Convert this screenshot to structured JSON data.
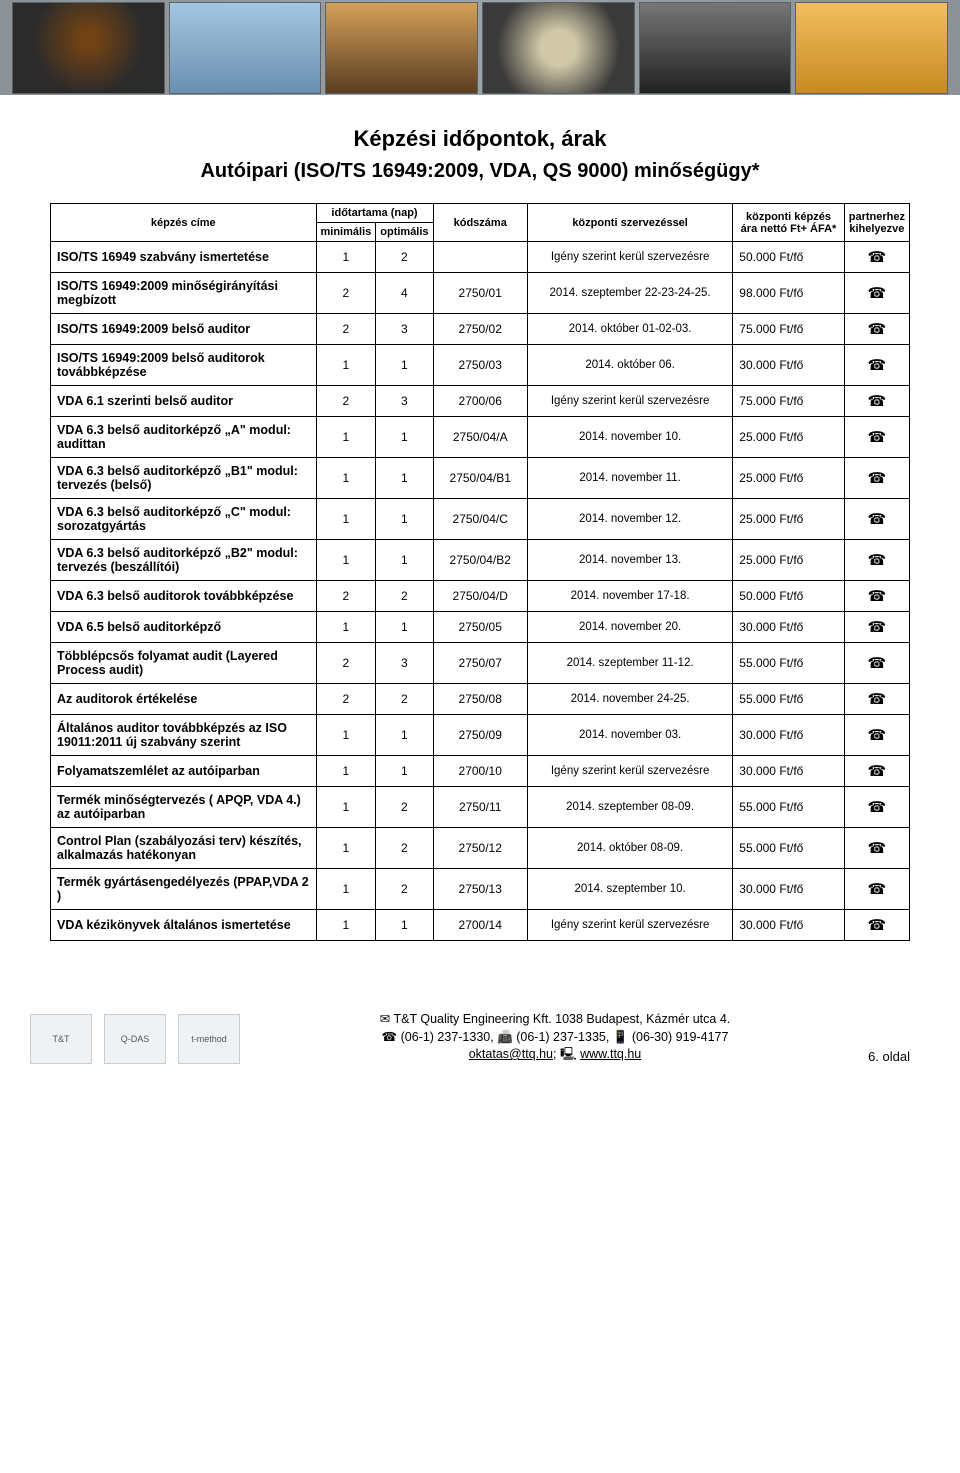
{
  "page_title": "Képzési időpontok, árak",
  "section_title": "Autóipari (ISO/TS 16949:2009, VDA, QS 9000) minőségügy*",
  "columns": {
    "name": "képzés címe",
    "duration_group": "időtartama (nap)",
    "min": "minimális",
    "opt": "optimális",
    "code": "kódszáma",
    "schedule": "központi szervezéssel",
    "price_group": "központi képzés ára nettó Ft+ ÁFA*",
    "partner": "partnerhez kihelyezve"
  },
  "rows": [
    {
      "name": "ISO/TS 16949 szabvány ismertetése",
      "min": "1",
      "opt": "2",
      "code": "",
      "sched": "Igény szerint kerül szervezésre",
      "price": "50.000 Ft/fő"
    },
    {
      "name": "ISO/TS 16949:2009 minőségirányítási megbízott",
      "min": "2",
      "opt": "4",
      "code": "2750/01",
      "sched": "2014. szeptember 22-23-24-25.",
      "price": "98.000 Ft/fő"
    },
    {
      "name": "ISO/TS 16949:2009 belső auditor",
      "min": "2",
      "opt": "3",
      "code": "2750/02",
      "sched": "2014. október 01-02-03.",
      "price": "75.000 Ft/fő"
    },
    {
      "name": "ISO/TS 16949:2009 belső auditorok továbbképzése",
      "min": "1",
      "opt": "1",
      "code": "2750/03",
      "sched": "2014. október 06.",
      "price": "30.000 Ft/fő"
    },
    {
      "name": "VDA 6.1 szerinti belső auditor",
      "min": "2",
      "opt": "3",
      "code": "2700/06",
      "sched": "Igény szerint kerül szervezésre",
      "price": "75.000 Ft/fő"
    },
    {
      "name": "VDA 6.3 belső auditorképző „A\" modul: audittan",
      "min": "1",
      "opt": "1",
      "code": "2750/04/A",
      "sched": "2014. november 10.",
      "price": "25.000 Ft/fő"
    },
    {
      "name": "VDA 6.3 belső auditorképző „B1\" modul: tervezés (belső)",
      "min": "1",
      "opt": "1",
      "code": "2750/04/B1",
      "sched": "2014. november 11.",
      "price": "25.000 Ft/fő"
    },
    {
      "name": "VDA 6.3 belső auditorképző „C\" modul: sorozatgyártás",
      "min": "1",
      "opt": "1",
      "code": "2750/04/C",
      "sched": "2014. november 12.",
      "price": "25.000 Ft/fő"
    },
    {
      "name": "VDA 6.3 belső auditorképző „B2\" modul: tervezés (beszállítói)",
      "min": "1",
      "opt": "1",
      "code": "2750/04/B2",
      "sched": "2014. november 13.",
      "price": "25.000 Ft/fő"
    },
    {
      "name": "VDA 6.3 belső auditorok továbbképzése",
      "min": "2",
      "opt": "2",
      "code": "2750/04/D",
      "sched": "2014. november 17-18.",
      "price": "50.000 Ft/fő"
    },
    {
      "name": "VDA 6.5 belső auditorképző",
      "min": "1",
      "opt": "1",
      "code": "2750/05",
      "sched": "2014. november 20.",
      "price": "30.000 Ft/fő"
    },
    {
      "name": "Többlépcsős folyamat audit (Layered Process audit)",
      "min": "2",
      "opt": "3",
      "code": "2750/07",
      "sched": "2014. szeptember 11-12.",
      "price": "55.000 Ft/fő"
    },
    {
      "name": "Az auditorok értékelése",
      "min": "2",
      "opt": "2",
      "code": "2750/08",
      "sched": "2014. november 24-25.",
      "price": "55.000 Ft/fő"
    },
    {
      "name": "Általános auditor továbbképzés az ISO 19011:2011 új szabvány szerint",
      "min": "1",
      "opt": "1",
      "code": "2750/09",
      "sched": "2014. november 03.",
      "price": "30.000 Ft/fő"
    },
    {
      "name": "Folyamatszemlélet az autóiparban",
      "min": "1",
      "opt": "1",
      "code": "2700/10",
      "sched": "Igény szerint kerül szervezésre",
      "price": "30.000 Ft/fő"
    },
    {
      "name": "Termék minőségtervezés ( APQP, VDA 4.) az autóiparban",
      "min": "1",
      "opt": "2",
      "code": "2750/11",
      "sched": "2014. szeptember 08-09.",
      "price": "55.000 Ft/fő"
    },
    {
      "name": "Control Plan (szabályozási terv) készítés, alkalmazás hatékonyan",
      "min": "1",
      "opt": "2",
      "code": "2750/12",
      "sched": "2014. október 08-09.",
      "price": "55.000 Ft/fő"
    },
    {
      "name": "Termék gyártásengedélyezés (PPAP,VDA 2 )",
      "min": "1",
      "opt": "2",
      "code": "2750/13",
      "sched": "2014. szeptember 10.",
      "price": "30.000 Ft/fő"
    },
    {
      "name": "VDA kézikönyvek általános ismertetése",
      "min": "1",
      "opt": "1",
      "code": "2700/14",
      "sched": "Igény szerint kerül szervezésre",
      "price": "30.000 Ft/fő"
    }
  ],
  "footer": {
    "company": "T&T Quality Engineering Kft. 1038 Budapest, Kázmér utca 4.",
    "phones": "(06-1) 237-1330, 📠 (06-1) 237-1335, 📱 (06-30) 919-4177",
    "email": "oktatas@ttq.hu",
    "web": "www.ttq.hu",
    "pagenum": "6. oldal",
    "logo1": "T&T",
    "logo2": "Q-DAS",
    "logo3": "t-method"
  },
  "icons": {
    "phone": "☎"
  }
}
